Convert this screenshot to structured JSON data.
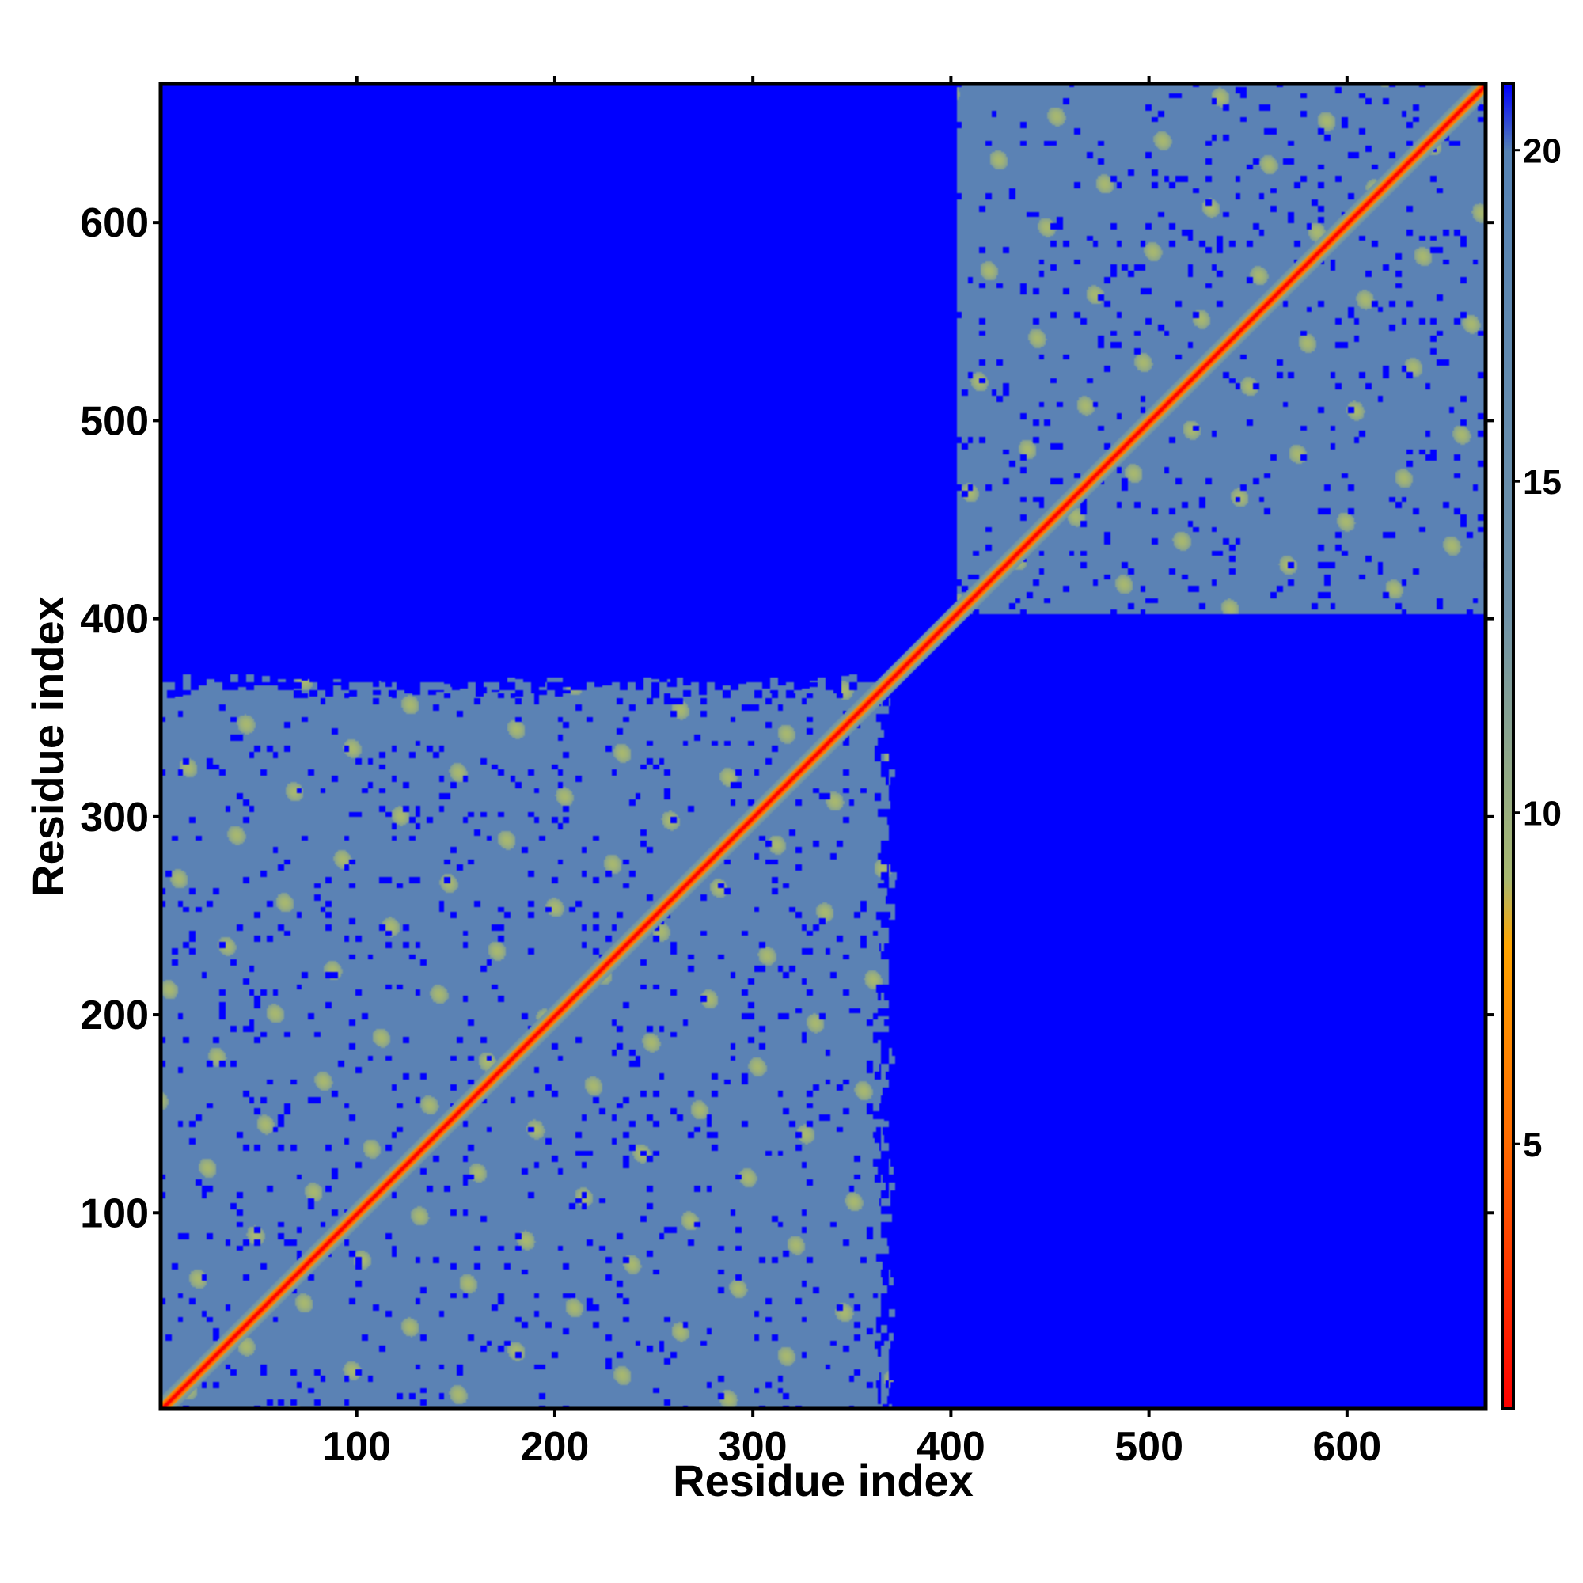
{
  "chart_data": {
    "type": "heatmap",
    "title": "",
    "xlabel": "Residue index",
    "ylabel": "Residue index",
    "xlim": [
      1,
      670
    ],
    "ylim": [
      1,
      670
    ],
    "x_ticks": [
      100,
      200,
      300,
      400,
      500,
      600
    ],
    "y_ticks": [
      100,
      200,
      300,
      400,
      500,
      600
    ],
    "x_tick_labels": [
      "100",
      "200",
      "300",
      "400",
      "500",
      "600"
    ],
    "y_tick_labels": [
      "100",
      "200",
      "300",
      "400",
      "500",
      "600"
    ],
    "colorbar": {
      "range": [
        1,
        21
      ],
      "ticks": [
        5,
        10,
        15,
        20
      ],
      "tick_labels": [
        "5",
        "10",
        "15",
        "20"
      ],
      "colors": [
        {
          "value": 1,
          "color": "#ff0000"
        },
        {
          "value": 5,
          "color": "#ff6a00"
        },
        {
          "value": 8,
          "color": "#ffa500"
        },
        {
          "value": 9,
          "color": "#a8b870"
        },
        {
          "value": 13,
          "color": "#6f92a8"
        },
        {
          "value": 20,
          "color": "#5582b4"
        },
        {
          "value": 21,
          "color": "#0000ff"
        }
      ]
    },
    "domains": [
      {
        "start": 1,
        "end": 360
      },
      {
        "start": 405,
        "end": 670
      }
    ],
    "background_color": "#0000ff",
    "domain_fill_color": "#5b82b4",
    "diagonal_color": "#ff0000"
  }
}
